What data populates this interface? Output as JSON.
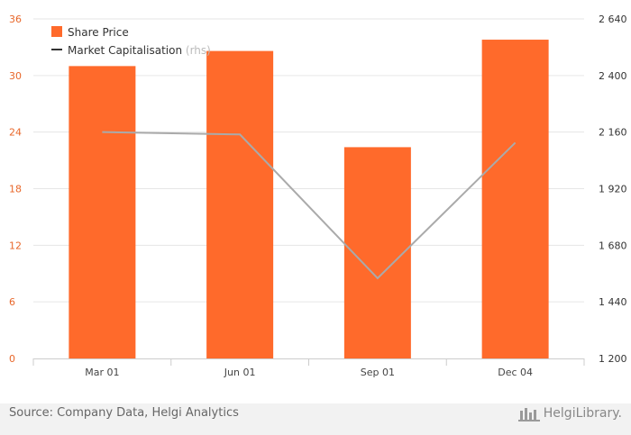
{
  "chart_data": {
    "type": "bar",
    "categories": [
      "Mar 01",
      "Jun 01",
      "Sep 01",
      "Dec 04"
    ],
    "series": [
      {
        "name": "Share Price",
        "type": "bar",
        "axis": "left",
        "values": [
          31.0,
          32.6,
          22.4,
          33.8
        ]
      },
      {
        "name": "Market Capitalisation",
        "name_suffix": "(rhs)",
        "type": "line",
        "axis": "right",
        "values": [
          2160,
          2150,
          1540,
          2115
        ]
      }
    ],
    "y_left": {
      "ylim": [
        0,
        36
      ],
      "ticks": [
        0,
        6,
        12,
        18,
        24,
        30,
        36
      ],
      "tick_labels": [
        "0",
        "6",
        "12",
        "18",
        "24",
        "30",
        "36"
      ]
    },
    "y_right": {
      "ylim": [
        1200,
        2640
      ],
      "ticks": [
        1200,
        1440,
        1680,
        1920,
        2160,
        2400,
        2640
      ],
      "tick_labels": [
        "1 200",
        "1 440",
        "1 680",
        "1 920",
        "2 160",
        "2 400",
        "2 640"
      ]
    },
    "grid": true,
    "legend_position": "top-left",
    "colors": {
      "bar": "#ff6a2b",
      "line": "#aaaaaa",
      "legend_line": "#333333",
      "left_ticks": "#e8672a"
    }
  },
  "footer": {
    "source": "Source: Company Data, Helgi Analytics",
    "brand": "HelgiLibrary."
  }
}
